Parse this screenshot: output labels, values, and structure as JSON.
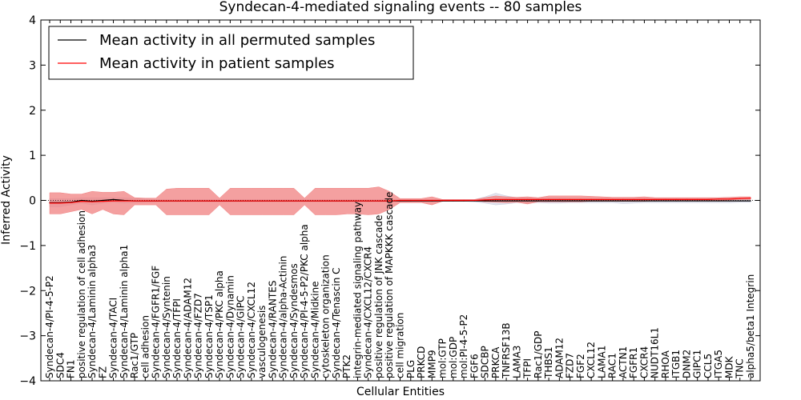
{
  "chart_data": {
    "type": "line",
    "title": "Syndecan-4-mediated signaling events -- 80 samples",
    "xlabel": "Cellular Entities",
    "ylabel": "Inferred Activity",
    "ylim": [
      -4,
      4
    ],
    "yticks": [
      -4,
      -3,
      -2,
      -1,
      0,
      1,
      2,
      3,
      4
    ],
    "ytick_labels": [
      "−4",
      "−3",
      "−2",
      "−1",
      "0",
      "1",
      "2",
      "3",
      "4"
    ],
    "legend_position": "top-left",
    "categories": [
      "Syndecan-4/PI-4-5-P2",
      "SDC4",
      "FN1",
      "positive regulation of cell adhesion",
      "Syndecan-4/Laminin alpha3",
      "FZ",
      "Syndecan-4/TACI",
      "Syndecan-4/Laminin alpha1",
      "Rac1/GTP",
      "cell adhesion",
      "Syndecan-4/FGFR1/FGF",
      "Syndecan-4/Syntenin",
      "Syndecan-4/TFPI",
      "Syndecan-4/ADAM12",
      "Syndecan-4/FZD7",
      "Syndecan-4/TSP1",
      "Syndecan-4/PKC alpha",
      "Syndecan-4/Dynamin",
      "Syndecan-4/GIPC",
      "Syndecan-4/CXCL12",
      "vasculogenesis",
      "Syndecan-4/RANTES",
      "Syndecan-4/alpha-Actinin",
      "Syndecan-4/Syndesmos",
      "Syndecan-4/PI-4-5-P2/PKC alpha",
      "Syndecan-4/Midkine",
      "cytoskeleton organization",
      "Syndecan-4/Tenascin C",
      "PTK2",
      "integrin-mediated signaling pathway",
      "Syndecan-4/CXCL12/CXCR4",
      "positive regulation of JNK cascade",
      "positive regulation of MAPKKK cascade",
      "cell migration",
      "PLG",
      "PRKCD",
      "MMP9",
      "mol:GTP",
      "mol:GDP",
      "mol:PI-4-5-P2",
      "FGF6",
      "SDCBP",
      "PRKCA",
      "TNFRSF13B",
      "LAMA3",
      "TFPI",
      "Rac1/GDP",
      "THBS1",
      "ADAM12",
      "FZD7",
      "FGF2",
      "CXCL12",
      "LAMA1",
      "RAC1",
      "ACTN1",
      "FGFR1",
      "CXCR4",
      "NUDT16L1",
      "RHOA",
      "ITGB1",
      "DNM2",
      "GIPC1",
      "CCL5",
      "ITGA5",
      "MDK",
      "TNC",
      "alpha5/beta1 Integrin"
    ],
    "series": [
      {
        "name": "Mean activity in all permuted samples",
        "color": "#000000",
        "fill": "#c8cadd",
        "values": [
          -0.05,
          -0.05,
          -0.04,
          0.0,
          -0.02,
          0.0,
          0.02,
          0.0,
          -0.01,
          -0.01,
          -0.01,
          -0.01,
          -0.01,
          -0.01,
          -0.01,
          -0.01,
          -0.01,
          -0.01,
          -0.01,
          -0.01,
          -0.01,
          -0.01,
          -0.01,
          -0.01,
          -0.01,
          -0.01,
          -0.01,
          -0.01,
          -0.01,
          -0.01,
          -0.01,
          -0.01,
          -0.01,
          -0.01,
          -0.01,
          -0.01,
          -0.01,
          -0.01,
          -0.01,
          -0.01,
          -0.01,
          -0.01,
          -0.01,
          -0.01,
          -0.01,
          -0.01,
          -0.01,
          -0.01,
          -0.01,
          -0.01,
          -0.01,
          -0.01,
          -0.01,
          -0.01,
          -0.01,
          -0.01,
          -0.01,
          -0.01,
          -0.01,
          -0.01,
          -0.01,
          -0.01,
          -0.01,
          -0.01,
          -0.01,
          -0.01,
          -0.01
        ],
        "lower": [
          -0.14,
          -0.14,
          -0.1,
          -0.06,
          -0.1,
          -0.06,
          -0.04,
          -0.06,
          -0.05,
          -0.04,
          -0.03,
          -0.03,
          -0.03,
          -0.03,
          -0.03,
          -0.03,
          -0.03,
          -0.03,
          -0.03,
          -0.03,
          -0.03,
          -0.03,
          -0.03,
          -0.03,
          -0.03,
          -0.03,
          -0.03,
          -0.03,
          -0.03,
          -0.03,
          -0.03,
          -0.03,
          -0.03,
          -0.03,
          -0.03,
          -0.03,
          -0.03,
          -0.02,
          -0.02,
          -0.02,
          -0.03,
          -0.06,
          -0.1,
          -0.08,
          -0.05,
          -0.06,
          -0.05,
          -0.06,
          -0.06,
          -0.05,
          -0.05,
          -0.05,
          -0.05,
          -0.05,
          -0.07,
          -0.06,
          -0.05,
          -0.05,
          -0.05,
          -0.05,
          -0.05,
          -0.05,
          -0.05,
          -0.05,
          -0.05,
          -0.04,
          -0.04
        ],
        "upper": [
          0.04,
          0.04,
          0.04,
          0.06,
          0.06,
          0.06,
          0.06,
          0.06,
          0.04,
          0.04,
          0.02,
          0.02,
          0.02,
          0.02,
          0.02,
          0.02,
          0.02,
          0.02,
          0.02,
          0.02,
          0.02,
          0.02,
          0.02,
          0.02,
          0.02,
          0.02,
          0.02,
          0.02,
          0.02,
          0.02,
          0.02,
          0.02,
          0.02,
          0.02,
          0.02,
          0.02,
          0.02,
          0.02,
          0.02,
          0.02,
          0.02,
          0.08,
          0.16,
          0.1,
          0.06,
          0.06,
          0.05,
          0.06,
          0.06,
          0.05,
          0.05,
          0.05,
          0.05,
          0.05,
          0.05,
          0.05,
          0.05,
          0.05,
          0.05,
          0.05,
          0.05,
          0.05,
          0.05,
          0.05,
          0.05,
          0.05,
          0.04
        ]
      },
      {
        "name": "Mean activity in patient samples",
        "color": "#ff0000",
        "fill": "#f08080",
        "values": [
          -0.06,
          -0.06,
          -0.05,
          -0.02,
          -0.03,
          -0.02,
          -0.01,
          -0.01,
          -0.01,
          -0.01,
          -0.01,
          -0.01,
          -0.01,
          -0.01,
          -0.01,
          -0.01,
          -0.01,
          -0.01,
          -0.01,
          -0.01,
          -0.01,
          -0.01,
          -0.01,
          -0.01,
          -0.01,
          -0.01,
          -0.01,
          -0.01,
          -0.01,
          -0.01,
          -0.01,
          -0.01,
          -0.01,
          0.0,
          0.0,
          0.0,
          0.0,
          0.0,
          0.0,
          0.0,
          0.0,
          0.01,
          0.02,
          0.02,
          0.02,
          0.02,
          0.02,
          0.02,
          0.02,
          0.02,
          0.02,
          0.02,
          0.02,
          0.02,
          0.02,
          0.02,
          0.02,
          0.02,
          0.02,
          0.02,
          0.02,
          0.02,
          0.02,
          0.03,
          0.03,
          0.04,
          0.05
        ],
        "lower": [
          -0.3,
          -0.3,
          -0.25,
          -0.2,
          -0.3,
          -0.2,
          -0.3,
          -0.32,
          -0.1,
          -0.1,
          -0.1,
          -0.32,
          -0.32,
          -0.32,
          -0.32,
          -0.32,
          -0.1,
          -0.32,
          -0.32,
          -0.32,
          -0.32,
          -0.32,
          -0.32,
          -0.32,
          -0.1,
          -0.32,
          -0.32,
          -0.32,
          -0.3,
          -0.3,
          -0.32,
          -0.3,
          -0.2,
          -0.05,
          -0.05,
          -0.05,
          -0.1,
          -0.02,
          -0.02,
          -0.02,
          -0.01,
          -0.03,
          -0.04,
          -0.05,
          -0.04,
          -0.08,
          -0.03,
          -0.03,
          -0.03,
          -0.03,
          -0.03,
          -0.02,
          -0.02,
          -0.02,
          -0.02,
          -0.02,
          -0.02,
          -0.01,
          -0.01,
          -0.01,
          -0.01,
          -0.01,
          -0.01,
          0.0,
          0.01,
          0.02,
          0.02
        ],
        "upper": [
          0.17,
          0.17,
          0.14,
          0.14,
          0.2,
          0.18,
          0.18,
          0.2,
          0.06,
          0.05,
          0.05,
          0.25,
          0.27,
          0.27,
          0.27,
          0.27,
          0.05,
          0.27,
          0.27,
          0.27,
          0.27,
          0.27,
          0.27,
          0.27,
          0.05,
          0.27,
          0.27,
          0.27,
          0.27,
          0.27,
          0.27,
          0.3,
          0.2,
          0.04,
          0.04,
          0.04,
          0.08,
          0.02,
          0.02,
          0.02,
          0.02,
          0.06,
          0.1,
          0.08,
          0.07,
          0.08,
          0.06,
          0.1,
          0.1,
          0.1,
          0.1,
          0.09,
          0.08,
          0.07,
          0.07,
          0.07,
          0.08,
          0.06,
          0.06,
          0.06,
          0.06,
          0.06,
          0.06,
          0.06,
          0.07,
          0.08,
          0.08
        ]
      }
    ]
  }
}
